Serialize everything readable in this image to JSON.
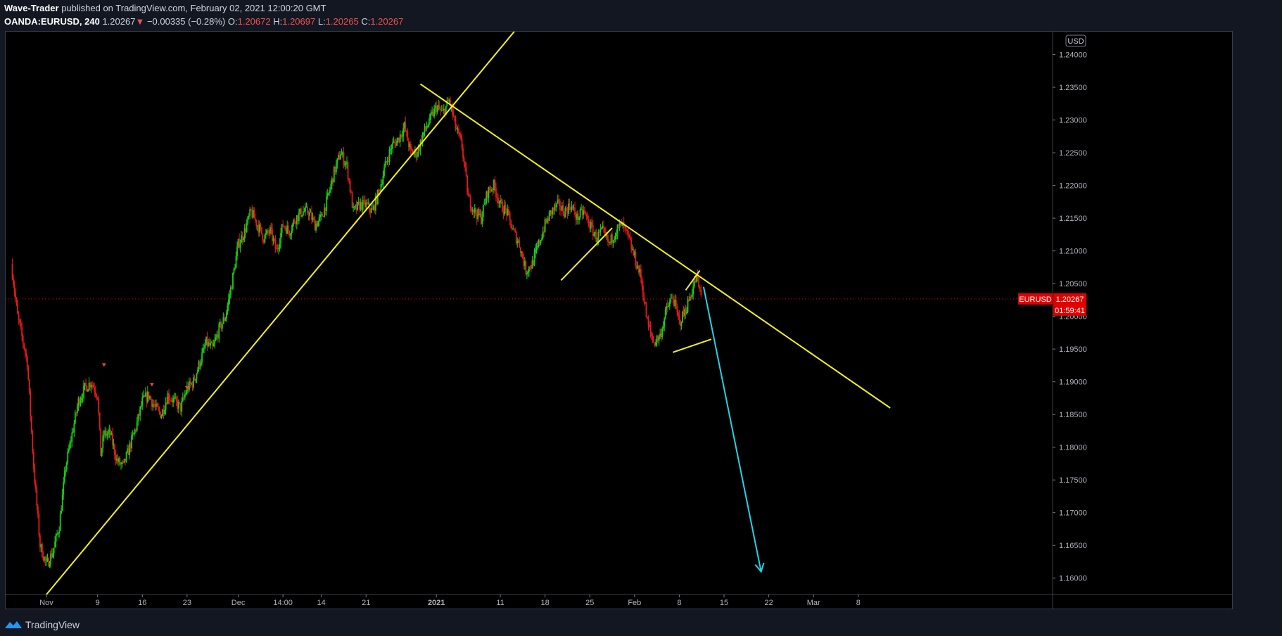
{
  "header": {
    "author": "Wave-Trader",
    "published": "published on TradingView.com, February 02, 2021 12:00:20 GMT",
    "symbol": "OANDA:EURUSD, 240",
    "last": "1.20267",
    "change": "−0.00335 (−0.28%)",
    "o_label": "O:",
    "o_value": "1.20672",
    "h_label": "H:",
    "h_value": "1.20697",
    "l_label": "L:",
    "l_value": "1.20265",
    "c_label": "C:",
    "c_value": "1.20267"
  },
  "footer": {
    "brand": "TradingView"
  },
  "colors": {
    "up": "#17d117",
    "down": "#e41b1b",
    "trendline": "#f2f21e",
    "arrow": "#22d4e8",
    "price_label": "#e00000"
  },
  "chart_data": {
    "type": "candlestick",
    "currency": "USD",
    "y_ticks": [
      "1.24000",
      "1.23500",
      "1.23000",
      "1.22500",
      "1.22000",
      "1.21500",
      "1.21000",
      "1.20500",
      "1.20000",
      "1.19500",
      "1.19000",
      "1.18500",
      "1.18000",
      "1.17500",
      "1.17000",
      "1.16500",
      "1.16000"
    ],
    "ylim": [
      1.1575,
      1.2435
    ],
    "x_ticks": [
      {
        "label": "Nov",
        "day": 0
      },
      {
        "label": "9",
        "day": 8
      },
      {
        "label": "16",
        "day": 15
      },
      {
        "label": "23",
        "day": 22
      },
      {
        "label": "Dec",
        "day": 30
      },
      {
        "label": "14:00",
        "day": 37
      },
      {
        "label": "14",
        "day": 43
      },
      {
        "label": "21",
        "day": 50
      },
      {
        "label": "2021",
        "day": 61
      },
      {
        "label": "11",
        "day": 71
      },
      {
        "label": "18",
        "day": 78
      },
      {
        "label": "25",
        "day": 85
      },
      {
        "label": "Feb",
        "day": 92
      },
      {
        "label": "8",
        "day": 99
      },
      {
        "label": "15",
        "day": 106
      },
      {
        "label": "22",
        "day": 113
      },
      {
        "label": "Mar",
        "day": 120
      },
      {
        "label": "8",
        "day": 127
      }
    ],
    "price_path": [
      [
        -5.5,
        1.208
      ],
      [
        -4.5,
        1.2
      ],
      [
        -3,
        1.193
      ],
      [
        -2,
        1.177
      ],
      [
        -1,
        1.165
      ],
      [
        0,
        1.162
      ],
      [
        1,
        1.164
      ],
      [
        2,
        1.168
      ],
      [
        3,
        1.177
      ],
      [
        4,
        1.182
      ],
      [
        5,
        1.187
      ],
      [
        6,
        1.189
      ],
      [
        7,
        1.19
      ],
      [
        8,
        1.188
      ],
      [
        8.5,
        1.179
      ],
      [
        9,
        1.182
      ],
      [
        10,
        1.182
      ],
      [
        11,
        1.178
      ],
      [
        12,
        1.177
      ],
      [
        13,
        1.18
      ],
      [
        14,
        1.183
      ],
      [
        15,
        1.187
      ],
      [
        16,
        1.188
      ],
      [
        17,
        1.186
      ],
      [
        18,
        1.185
      ],
      [
        19,
        1.188
      ],
      [
        20,
        1.187
      ],
      [
        21,
        1.186
      ],
      [
        22,
        1.189
      ],
      [
        23,
        1.19
      ],
      [
        24,
        1.193
      ],
      [
        25,
        1.196
      ],
      [
        26,
        1.195
      ],
      [
        27,
        1.198
      ],
      [
        28,
        1.2
      ],
      [
        29,
        1.205
      ],
      [
        30,
        1.211
      ],
      [
        31,
        1.213
      ],
      [
        32,
        1.216
      ],
      [
        33,
        1.214
      ],
      [
        34,
        1.212
      ],
      [
        35,
        1.213
      ],
      [
        36,
        1.21
      ],
      [
        37,
        1.214
      ],
      [
        38,
        1.213
      ],
      [
        39,
        1.215
      ],
      [
        40,
        1.216
      ],
      [
        41,
        1.216
      ],
      [
        42,
        1.214
      ],
      [
        43,
        1.215
      ],
      [
        44,
        1.218
      ],
      [
        45,
        1.222
      ],
      [
        46,
        1.225
      ],
      [
        47,
        1.223
      ],
      [
        48,
        1.216
      ],
      [
        49,
        1.217
      ],
      [
        50,
        1.217
      ],
      [
        51,
        1.216
      ],
      [
        52,
        1.219
      ],
      [
        53,
        1.223
      ],
      [
        54,
        1.226
      ],
      [
        55,
        1.227
      ],
      [
        56,
        1.229
      ],
      [
        57,
        1.225
      ],
      [
        58,
        1.225
      ],
      [
        59,
        1.228
      ],
      [
        60,
        1.23
      ],
      [
        61,
        1.232
      ],
      [
        62,
        1.231
      ],
      [
        63,
        1.233
      ],
      [
        64,
        1.229
      ],
      [
        65,
        1.226
      ],
      [
        66,
        1.218
      ],
      [
        67,
        1.216
      ],
      [
        68,
        1.215
      ],
      [
        69,
        1.219
      ],
      [
        70,
        1.22
      ],
      [
        71,
        1.217
      ],
      [
        72,
        1.216
      ],
      [
        73,
        1.213
      ],
      [
        74,
        1.211
      ],
      [
        75,
        1.207
      ],
      [
        76,
        1.208
      ],
      [
        77,
        1.211
      ],
      [
        78,
        1.214
      ],
      [
        79,
        1.216
      ],
      [
        80,
        1.217
      ],
      [
        81,
        1.216
      ],
      [
        82,
        1.217
      ],
      [
        83,
        1.215
      ],
      [
        84,
        1.216
      ],
      [
        85,
        1.214
      ],
      [
        86,
        1.212
      ],
      [
        87,
        1.213
      ],
      [
        88,
        1.211
      ],
      [
        89,
        1.213
      ],
      [
        90,
        1.214
      ],
      [
        91,
        1.212
      ],
      [
        92,
        1.209
      ],
      [
        93,
        1.206
      ],
      [
        94,
        1.199
      ],
      [
        95,
        1.196
      ],
      [
        96,
        1.197
      ],
      [
        97,
        1.201
      ],
      [
        98,
        1.203
      ],
      [
        99,
        1.199
      ],
      [
        100,
        1.201
      ],
      [
        101,
        1.204
      ],
      [
        101.7,
        1.206
      ],
      [
        102.4,
        1.203
      ]
    ],
    "markers": [
      {
        "day": 9,
        "price": 1.1925
      },
      {
        "day": 16.5,
        "price": 1.1895
      },
      {
        "day": 22,
        "price": 1.189
      }
    ],
    "trendlines": [
      {
        "from": [
          0,
          1.1575
        ],
        "to": [
          77,
          1.248
        ]
      },
      {
        "from": [
          58.5,
          1.2355
        ],
        "to": [
          132,
          1.186
        ]
      },
      {
        "from": [
          80.5,
          1.2055
        ],
        "to": [
          88.5,
          1.2135
        ]
      },
      {
        "from": [
          100,
          1.204
        ],
        "to": [
          102.2,
          1.207
        ]
      },
      {
        "from": [
          98,
          1.1945
        ],
        "to": [
          104,
          1.1965
        ]
      }
    ],
    "forecast_arrow": {
      "from": [
        102.8,
        1.2045
      ],
      "to": [
        111.8,
        1.161
      ]
    },
    "current_price": {
      "label": "EURUSD",
      "value": "1.20267",
      "countdown": "01:59:41",
      "price": 1.20267
    }
  }
}
